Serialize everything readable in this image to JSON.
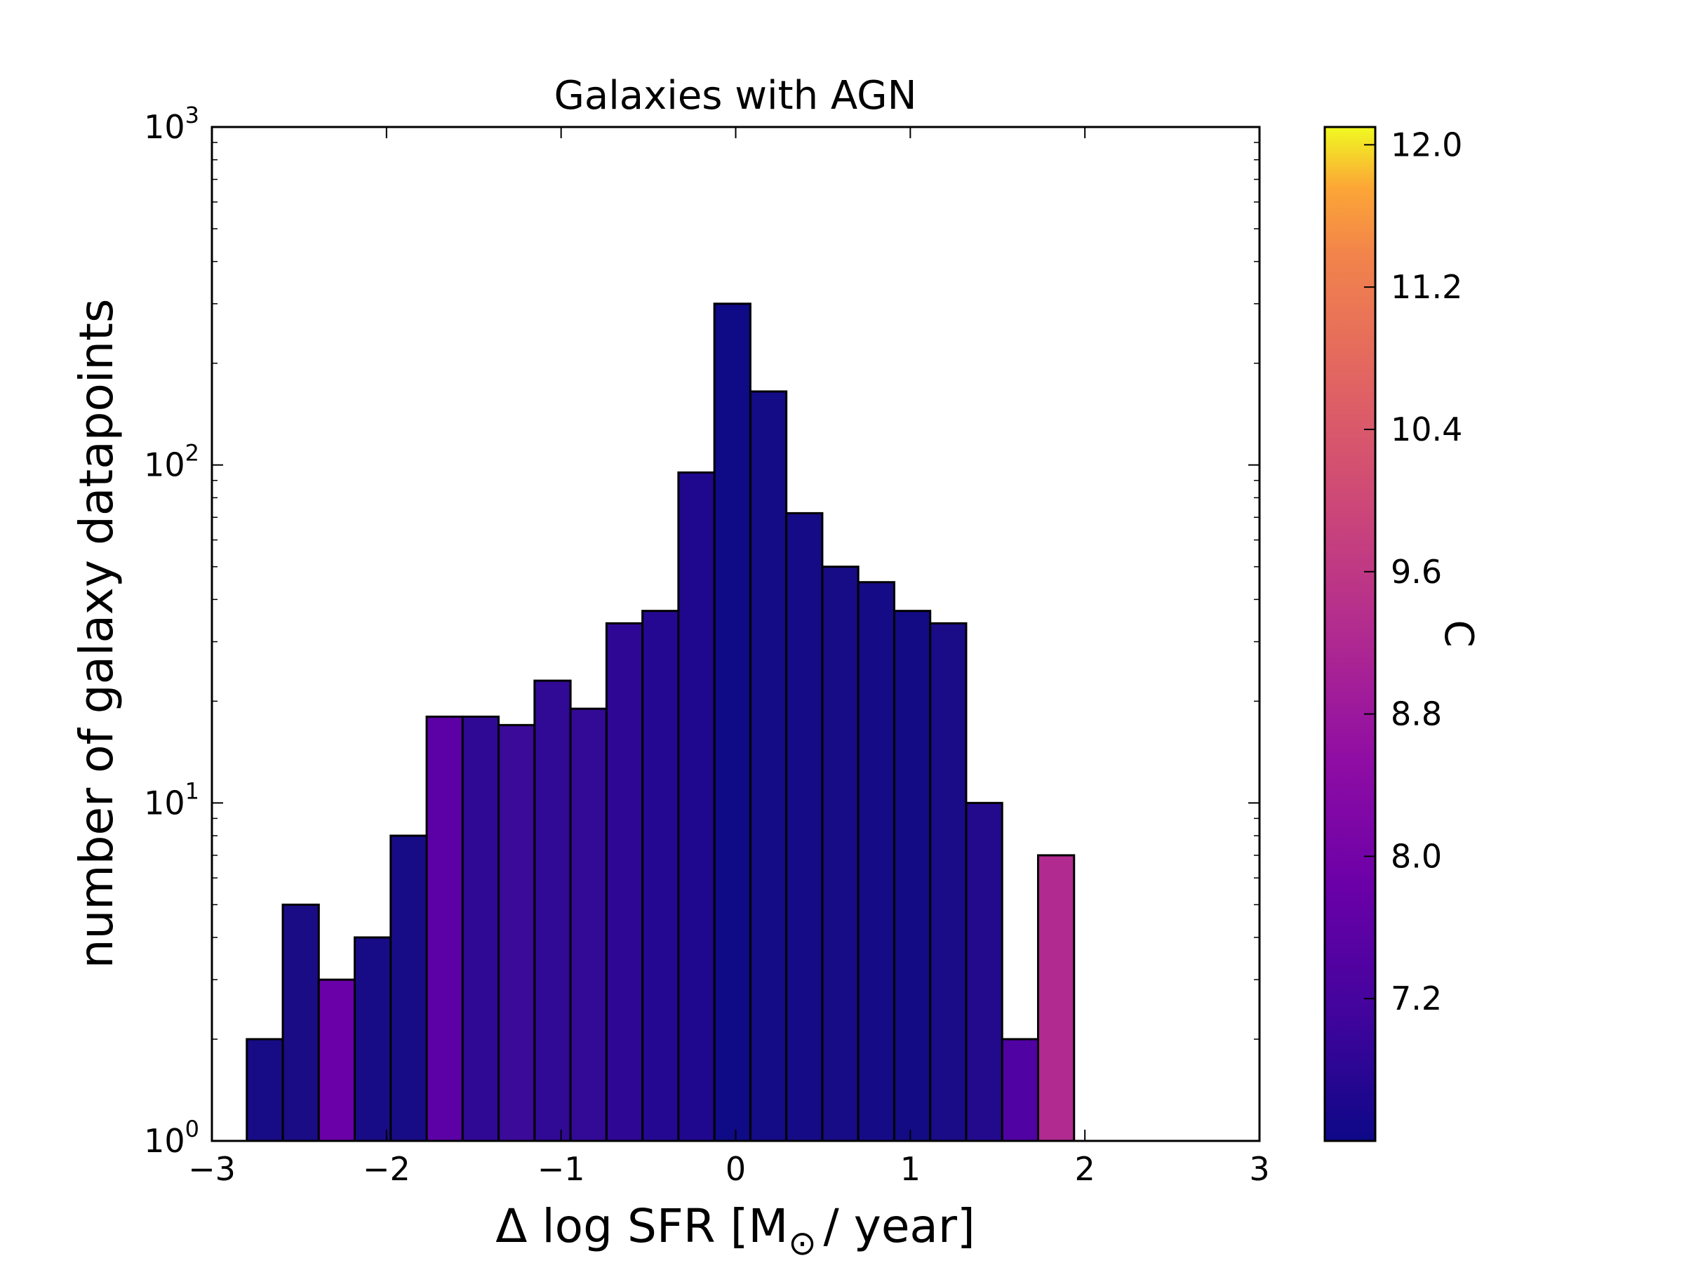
{
  "chart_data": {
    "type": "bar",
    "title": "Galaxies with AGN",
    "xlabel": "Δ log SFR [M",
    "xlabel_sub": "⊙",
    "xlabel_end": "/ year]",
    "ylabel": "number of galaxy datapoints",
    "y_scale": "log",
    "xlim": [
      -3,
      3
    ],
    "ylim": [
      1,
      1000
    ],
    "x_ticks": [
      -3,
      -2,
      -1,
      0,
      1,
      2,
      3
    ],
    "x_tick_labels": [
      "−3",
      "−2",
      "−1",
      "0",
      "1",
      "2",
      "3"
    ],
    "y_ticks": [
      1,
      10,
      100,
      1000
    ],
    "y_tick_labels": [
      {
        "base": "10",
        "exp": "0"
      },
      {
        "base": "10",
        "exp": "1"
      },
      {
        "base": "10",
        "exp": "2"
      },
      {
        "base": "10",
        "exp": "3"
      }
    ],
    "bin_edges": [
      -2.8,
      -2.594,
      -2.388,
      -2.182,
      -1.976,
      -1.77,
      -1.564,
      -1.358,
      -1.152,
      -0.946,
      -0.74,
      -0.534,
      -0.328,
      -0.122,
      0.084,
      0.29,
      0.496,
      0.702,
      0.908,
      1.114,
      1.32,
      1.526,
      1.732,
      1.938
    ],
    "values": [
      2,
      5,
      3,
      4,
      8,
      18,
      18,
      17,
      23,
      19,
      34,
      37,
      95,
      300,
      165,
      72,
      50,
      45,
      37,
      34,
      10,
      2,
      7
    ],
    "colors": [
      "#180c86",
      "#1a0c85",
      "#6a00a7",
      "#180c86",
      "#170c86",
      "#5c01a6",
      "#2f0994",
      "#3b0a98",
      "#300994",
      "#330a96",
      "#2e0894",
      "#250891",
      "#20088e",
      "#0f0a85",
      "#140b86",
      "#150b86",
      "#170b86",
      "#160b86",
      "#120b84",
      "#1a0b87",
      "#230a8d",
      "#5102a3",
      "#b12a90"
    ],
    "grid": false,
    "colorbar": {
      "label": "C",
      "ticks": [
        7.2,
        8.0,
        8.8,
        9.6,
        10.4,
        11.2,
        12.0
      ],
      "tick_labels": [
        "7.2",
        "8.0",
        "8.8",
        "9.6",
        "10.4",
        "11.2",
        "12.0"
      ],
      "range": [
        6.4,
        12.1
      ],
      "colormap": "plasma"
    }
  }
}
